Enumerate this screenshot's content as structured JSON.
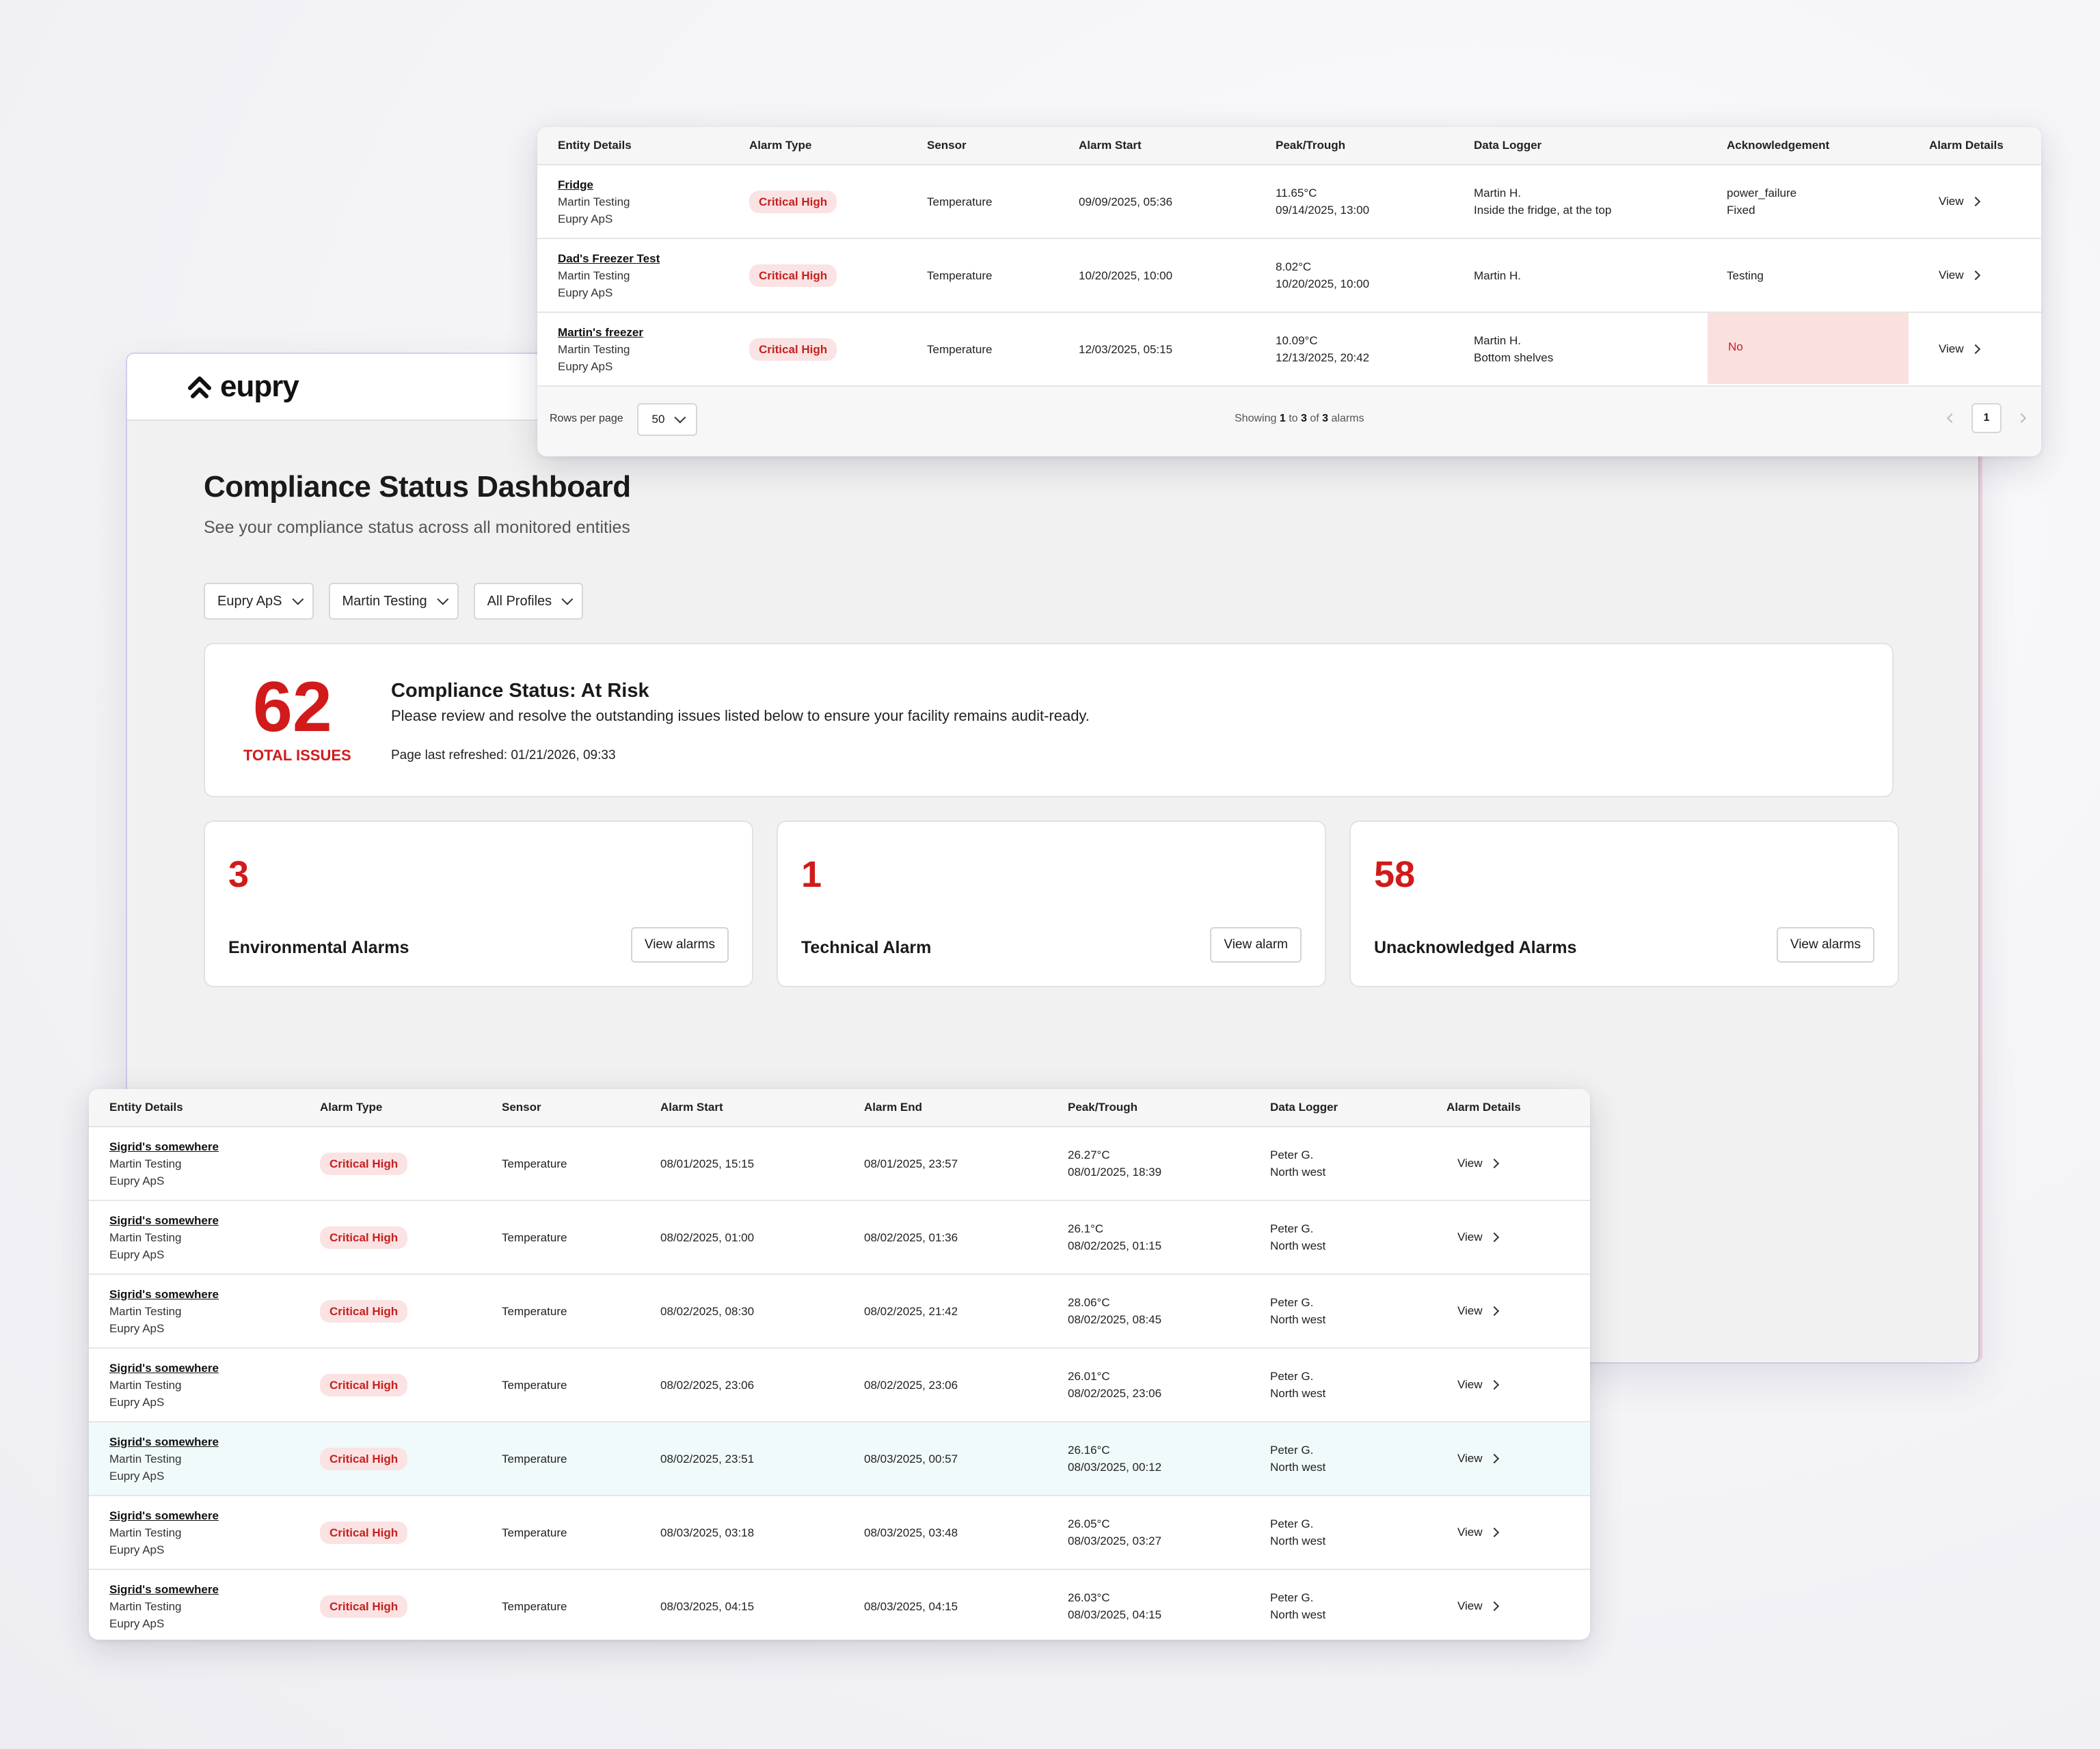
{
  "brand": {
    "name": "eupry"
  },
  "dashboard": {
    "title": "Compliance Status Dashboard",
    "subtitle": "See your compliance status across all monitored entities",
    "filters": [
      {
        "label": "Eupry ApS"
      },
      {
        "label": "Martin Testing"
      },
      {
        "label": "All Profiles"
      }
    ],
    "status": {
      "total": "62",
      "total_label": "TOTAL ISSUES",
      "title": "Compliance Status: At Risk",
      "description": "Please review and resolve the outstanding issues listed below to ensure your facility remains audit-ready.",
      "refreshed": "Page last refreshed: 01/21/2026, 09:33"
    },
    "metrics": [
      {
        "value": "3",
        "label": "Environmental Alarms",
        "button": "View alarms"
      },
      {
        "value": "1",
        "label": "Technical Alarm",
        "button": "View alarm"
      },
      {
        "value": "58",
        "label": "Unacknowledged Alarms",
        "button": "View alarms"
      }
    ]
  },
  "top_table": {
    "headers": [
      "Entity Details",
      "Alarm Type",
      "Sensor",
      "Alarm Start",
      "Peak/Trough",
      "Data Logger",
      "Acknowledgement",
      "Alarm Details"
    ],
    "rows": [
      {
        "name": "Fridge",
        "org1": "Martin Testing",
        "org2": "Eupry ApS",
        "type": "Critical High",
        "sensor": "Temperature",
        "start": "09/09/2025, 05:36",
        "peak": "11.65°C",
        "peak_time": "09/14/2025, 13:00",
        "logger": "Martin H.",
        "logger_loc": "Inside the fridge, at the top",
        "ack": "power_failure",
        "ack_sub": "Fixed",
        "view": "View"
      },
      {
        "name": "Dad's Freezer Test",
        "org1": "Martin Testing",
        "org2": "Eupry ApS",
        "type": "Critical High",
        "sensor": "Temperature",
        "start": "10/20/2025, 10:00",
        "peak": "8.02°C",
        "peak_time": "10/20/2025, 10:00",
        "logger": "Martin H.",
        "logger_loc": "",
        "ack": "Testing",
        "ack_sub": "",
        "view": "View"
      },
      {
        "name": "Martin's freezer",
        "org1": "Martin Testing",
        "org2": "Eupry ApS",
        "type": "Critical High",
        "sensor": "Temperature",
        "start": "12/03/2025, 05:15",
        "peak": "10.09°C",
        "peak_time": "12/13/2025, 20:42",
        "logger": "Martin H.",
        "logger_loc": "Bottom shelves",
        "ack": "No",
        "ack_sub": "",
        "view": "View"
      }
    ],
    "footer": {
      "rows_per_page_label": "Rows per page",
      "rows_per_page": "50",
      "showing_prefix": "Showing",
      "showing_from": "1",
      "showing_to_word": "to",
      "showing_to": "3",
      "showing_of_word": "of",
      "showing_total": "3",
      "showing_suffix": "alarms",
      "page": "1"
    }
  },
  "bottom_table": {
    "headers": [
      "Entity Details",
      "Alarm Type",
      "Sensor",
      "Alarm Start",
      "Alarm End",
      "Peak/Trough",
      "Data Logger",
      "Alarm Details"
    ],
    "rows": [
      {
        "name": "Sigrid's somewhere",
        "org1": "Martin Testing",
        "org2": "Eupry ApS",
        "type": "Critical High",
        "sensor": "Temperature",
        "start": "08/01/2025, 15:15",
        "end": "08/01/2025, 23:57",
        "peak": "26.27°C",
        "peak_time": "08/01/2025, 18:39",
        "logger": "Peter G.",
        "logger_loc": "North west",
        "view": "View"
      },
      {
        "name": "Sigrid's somewhere",
        "org1": "Martin Testing",
        "org2": "Eupry ApS",
        "type": "Critical High",
        "sensor": "Temperature",
        "start": "08/02/2025, 01:00",
        "end": "08/02/2025, 01:36",
        "peak": "26.1°C",
        "peak_time": "08/02/2025, 01:15",
        "logger": "Peter G.",
        "logger_loc": "North west",
        "view": "View"
      },
      {
        "name": "Sigrid's somewhere",
        "org1": "Martin Testing",
        "org2": "Eupry ApS",
        "type": "Critical High",
        "sensor": "Temperature",
        "start": "08/02/2025, 08:30",
        "end": "08/02/2025, 21:42",
        "peak": "28.06°C",
        "peak_time": "08/02/2025, 08:45",
        "logger": "Peter G.",
        "logger_loc": "North west",
        "view": "View"
      },
      {
        "name": "Sigrid's somewhere",
        "org1": "Martin Testing",
        "org2": "Eupry ApS",
        "type": "Critical High",
        "sensor": "Temperature",
        "start": "08/02/2025, 23:06",
        "end": "08/02/2025, 23:06",
        "peak": "26.01°C",
        "peak_time": "08/02/2025, 23:06",
        "logger": "Peter G.",
        "logger_loc": "North west",
        "view": "View"
      },
      {
        "name": "Sigrid's somewhere",
        "org1": "Martin Testing",
        "org2": "Eupry ApS",
        "type": "Critical High",
        "sensor": "Temperature",
        "start": "08/02/2025, 23:51",
        "end": "08/03/2025, 00:57",
        "peak": "26.16°C",
        "peak_time": "08/03/2025, 00:12",
        "logger": "Peter G.",
        "logger_loc": "North west",
        "view": "View",
        "highlight": true
      },
      {
        "name": "Sigrid's somewhere",
        "org1": "Martin Testing",
        "org2": "Eupry ApS",
        "type": "Critical High",
        "sensor": "Temperature",
        "start": "08/03/2025, 03:18",
        "end": "08/03/2025, 03:48",
        "peak": "26.05°C",
        "peak_time": "08/03/2025, 03:27",
        "logger": "Peter G.",
        "logger_loc": "North west",
        "view": "View"
      },
      {
        "name": "Sigrid's somewhere",
        "org1": "Martin Testing",
        "org2": "Eupry ApS",
        "type": "Critical High",
        "sensor": "Temperature",
        "start": "08/03/2025, 04:15",
        "end": "08/03/2025, 04:15",
        "peak": "26.03°C",
        "peak_time": "08/03/2025, 04:15",
        "logger": "Peter G.",
        "logger_loc": "North west",
        "view": "View"
      }
    ]
  },
  "colors": {
    "alert": "#d11a1a",
    "badge_bg": "#fbe3e3",
    "ack_no_bg": "#fbe0e0",
    "highlight_row": "#f1fafb"
  }
}
